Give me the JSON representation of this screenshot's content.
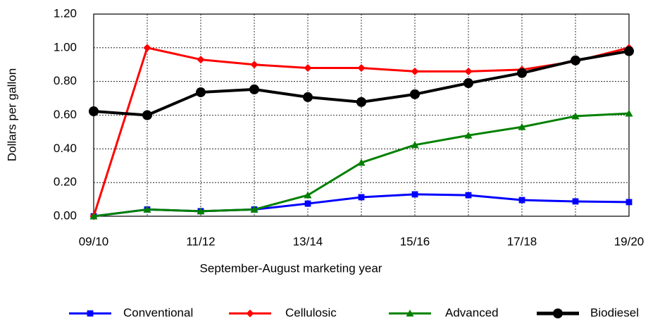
{
  "chart_data": {
    "type": "line",
    "x_label": "September-August marketing year",
    "y_label": "Dollars per gallon",
    "categories": [
      "09/10",
      null,
      "11/12",
      null,
      "13/14",
      null,
      "15/16",
      null,
      "17/18",
      null,
      "19/20"
    ],
    "ylim": [
      0,
      1.2
    ],
    "yticks": [
      {
        "value": 0,
        "label": "0.00"
      },
      {
        "value": 0.2,
        "label": "0.20"
      },
      {
        "value": 0.4,
        "label": "0.40"
      },
      {
        "value": 0.6,
        "label": "0.60"
      },
      {
        "value": 0.8,
        "label": "0.80"
      },
      {
        "value": 1.0,
        "label": "1.00"
      },
      {
        "value": 1.2,
        "label": "1.20"
      }
    ],
    "grid": true,
    "legend": "bottom",
    "series": [
      {
        "name": "Conventional",
        "color": "#0000ff",
        "marker": "square",
        "values": [
          0,
          0.04,
          0.03,
          0.04,
          0.075,
          0.113,
          0.13,
          0.125,
          0.096,
          0.088,
          0.084
        ]
      },
      {
        "name": "Cellulosic",
        "color": "#ff0000",
        "marker": "diamond",
        "values": [
          0,
          1.0,
          0.93,
          0.9,
          0.88,
          0.88,
          0.86,
          0.86,
          0.87,
          0.92,
          1.0
        ]
      },
      {
        "name": "Advanced",
        "color": "#008000",
        "marker": "triangle",
        "values": [
          0,
          0.04,
          0.03,
          0.04,
          0.125,
          0.318,
          0.423,
          0.48,
          0.53,
          0.594,
          0.61
        ]
      },
      {
        "name": "Biodiesel",
        "color": "#000000",
        "marker": "circle",
        "values": [
          0.623,
          0.6,
          0.736,
          0.753,
          0.707,
          0.678,
          0.724,
          0.79,
          0.85,
          0.925,
          0.98
        ]
      }
    ]
  }
}
